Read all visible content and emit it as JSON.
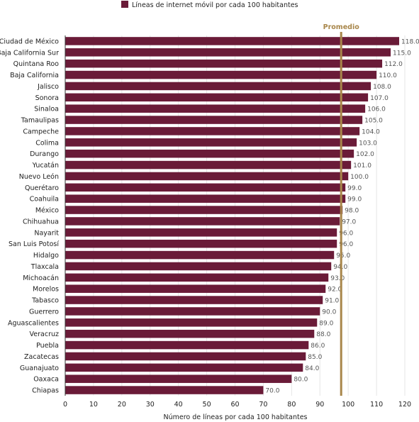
{
  "chart_data": {
    "type": "bar",
    "orientation": "horizontal",
    "legend": "Líneas de internet móvil por cada 100 habitantes",
    "legend_position": "top",
    "xlabel": "Número de líneas por cada 100 habitantes",
    "xlim": [
      0,
      120
    ],
    "xticks": [
      0,
      10,
      20,
      30,
      40,
      50,
      60,
      70,
      80,
      90,
      100,
      110,
      120
    ],
    "grid": "vertical",
    "average_label": "Promedio",
    "average_value": 97.5,
    "categories": [
      "Ciudad de México",
      "Baja California Sur",
      "Quintana Roo",
      "Baja California",
      "Jalisco",
      "Sonora",
      "Sinaloa",
      "Tamaulipas",
      "Campeche",
      "Colima",
      "Durango",
      "Yucatán",
      "Nuevo León",
      "Querétaro",
      "Coahuila",
      "México",
      "Chihuahua",
      "Nayarit",
      "San Luis Potosí",
      "Hidalgo",
      "Tlaxcala",
      "Michoacán",
      "Morelos",
      "Tabasco",
      "Guerrero",
      "Aguascalientes",
      "Veracruz",
      "Puebla",
      "Zacatecas",
      "Guanajuato",
      "Oaxaca",
      "Chiapas"
    ],
    "values": [
      118.0,
      115.0,
      112.0,
      110.0,
      108.0,
      107.0,
      106.0,
      105.0,
      104.0,
      103.0,
      102.0,
      101.0,
      100.0,
      99.0,
      99.0,
      98.0,
      97.0,
      96.0,
      96.0,
      95.0,
      94.0,
      93.0,
      92.0,
      91.0,
      90.0,
      89.0,
      88.0,
      86.0,
      85.0,
      84.0,
      80.0,
      70.0
    ],
    "value_labels": [
      "118.0",
      "115.0",
      "112.0",
      "110.0",
      "108.0",
      "107.0",
      "106.0",
      "105.0",
      "104.0",
      "103.0",
      "102.0",
      "101.0",
      "100.0",
      "99.0",
      "99.0",
      "98.0",
      "97.0",
      "96.0",
      "96.0",
      "95.0",
      "94.0",
      "93.0",
      "92.0",
      "91.0",
      "90.0",
      "89.0",
      "88.0",
      "86.0",
      "85.0",
      "84.0",
      "80.0",
      "70.0"
    ]
  },
  "colors": {
    "bar": "#6a1b38",
    "average_line": "#a8864a",
    "grid": "#e6e6e6",
    "axis": "#333333"
  }
}
